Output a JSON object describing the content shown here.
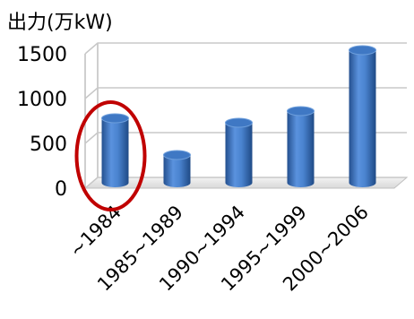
{
  "chart_data": {
    "type": "bar",
    "ylabel": "出力(万kW)",
    "categories": [
      "~1984",
      "1985~1989",
      "1990~1994",
      "1995~1999",
      "2000~2006"
    ],
    "values": [
      720,
      310,
      670,
      800,
      1480
    ],
    "ylim": [
      0,
      1500
    ],
    "yticks": [
      "0",
      "500",
      "1000",
      "1500"
    ],
    "grid": true,
    "bar_color": "#3f78c4",
    "highlight": {
      "category": "~1984",
      "shape": "ellipse",
      "color": "#c00000"
    }
  }
}
